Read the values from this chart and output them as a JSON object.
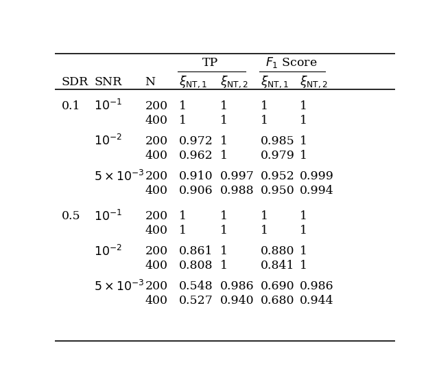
{
  "bg_color": "#ffffff",
  "font_size": 12.5,
  "rows": [
    [
      "0.1",
      "10^{-1}",
      "200",
      "1",
      "1",
      "1",
      "1"
    ],
    [
      "",
      "",
      "400",
      "1",
      "1",
      "1",
      "1"
    ],
    [
      "",
      "10^{-2}",
      "200",
      "0.972",
      "1",
      "0.985",
      "1"
    ],
    [
      "",
      "",
      "400",
      "0.962",
      "1",
      "0.979",
      "1"
    ],
    [
      "",
      "5x10^{-3}",
      "200",
      "0.910",
      "0.997",
      "0.952",
      "0.999"
    ],
    [
      "",
      "",
      "400",
      "0.906",
      "0.988",
      "0.950",
      "0.994"
    ],
    [
      "0.5",
      "10^{-1}",
      "200",
      "1",
      "1",
      "1",
      "1"
    ],
    [
      "",
      "",
      "400",
      "1",
      "1",
      "1",
      "1"
    ],
    [
      "",
      "10^{-2}",
      "200",
      "0.861",
      "1",
      "0.880",
      "1"
    ],
    [
      "",
      "",
      "400",
      "0.808",
      "1",
      "0.841",
      "1"
    ],
    [
      "",
      "5x10^{-3}",
      "200",
      "0.548",
      "0.986",
      "0.690",
      "0.986"
    ],
    [
      "",
      "",
      "400",
      "0.527",
      "0.940",
      "0.680",
      "0.944"
    ]
  ]
}
